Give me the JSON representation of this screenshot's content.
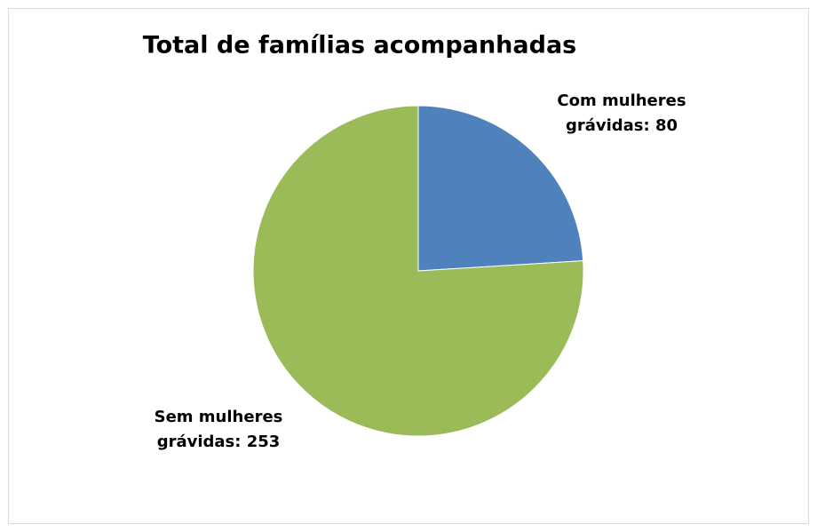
{
  "chart_data": {
    "type": "pie",
    "title": "Total de famílias acompanhadas",
    "values": [
      80,
      253
    ],
    "value_labels": [
      "Com mulheres grávidas: 80",
      "Sem mulheres grávidas: 253"
    ],
    "colors": [
      "#4f81bd",
      "#9bbb59"
    ]
  }
}
